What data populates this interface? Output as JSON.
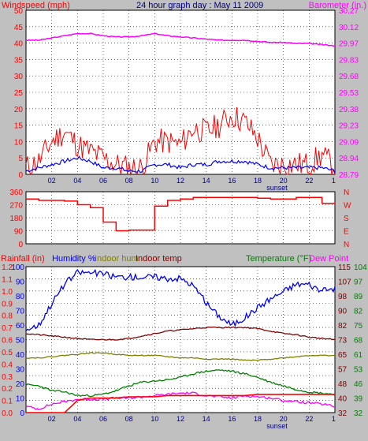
{
  "header": {
    "left_label": "Windspeed (mph)",
    "title": "24 hour graph day : May 11 2009",
    "right_label": "Barometer (in.)"
  },
  "legend_bottom": {
    "rainfall": "Rainfall (in)",
    "humidity": "Humidity %",
    "indoor_hum": "Indoor hum",
    "indoor_temp": "Indoor temp",
    "temperature": "Temperature (°F)",
    "dew_point": "Dew Point"
  },
  "colors": {
    "wind_speed": "#0000ff",
    "wind_gust": "#ff0000",
    "barometer": "#ff00ff",
    "direction": "#ff0000",
    "humidity": "#0000ff",
    "indoor_hum": "#808000",
    "indoor_temp": "#800000",
    "temperature": "#008000",
    "dew_point": "#ff00ff",
    "rainfall": "#ff0000",
    "red_axis": "#ff0000",
    "blue_axis": "#0000ff",
    "magenta_axis": "#ff00ff",
    "green_axis": "#008000"
  },
  "x_axis": {
    "ticks": [
      "02",
      "04",
      "06",
      "08",
      "10",
      "12",
      "14",
      "16",
      "18",
      "20",
      "22",
      "1"
    ],
    "marker": "sunset"
  },
  "chart_data": [
    {
      "type": "line",
      "title": "24 hour graph day : May 11 2009",
      "ylabel": "Windspeed (mph)",
      "y2label": "Barometer (in.)",
      "x": [
        0,
        1,
        2,
        3,
        4,
        5,
        6,
        7,
        8,
        9,
        10,
        11,
        12,
        13,
        14,
        15,
        16,
        17,
        18,
        19,
        20,
        21,
        22,
        23,
        24
      ],
      "ylim": [
        0,
        50
      ],
      "y2lim": [
        28.79,
        30.27
      ],
      "y_ticks": [
        "0",
        "5",
        "10",
        "15",
        "20",
        "25",
        "30",
        "35",
        "40",
        "45",
        "50"
      ],
      "y2_ticks": [
        "28.79",
        "28.94",
        "29.09",
        "29.23",
        "29.38",
        "29.53",
        "29.68",
        "29.83",
        "29.97",
        "30.12",
        "30.27"
      ],
      "series": [
        {
          "axis": "left",
          "values": [
            1,
            2,
            3,
            4,
            5,
            4,
            2,
            2,
            1,
            1,
            3,
            3,
            2,
            3,
            3,
            4,
            4,
            4,
            3,
            2,
            2,
            2,
            2,
            2,
            1
          ]
        },
        {
          "axis": "left",
          "values": [
            2,
            4,
            10,
            13,
            9,
            7,
            5,
            3,
            2,
            2,
            10,
            10,
            9,
            14,
            13,
            15,
            18,
            16,
            11,
            3,
            3,
            3,
            3,
            6,
            2
          ]
        },
        {
          "axis": "right",
          "values": [
            30.0,
            30.0,
            30.02,
            30.04,
            30.06,
            30.06,
            30.04,
            30.03,
            30.03,
            30.04,
            30.06,
            30.04,
            30.03,
            30.02,
            30.01,
            30.0,
            30.0,
            30.0,
            29.99,
            29.98,
            29.98,
            29.97,
            29.97,
            29.96,
            29.95
          ]
        }
      ]
    },
    {
      "type": "line",
      "x": [
        0,
        1,
        2,
        3,
        4,
        5,
        6,
        7,
        8,
        9,
        10,
        11,
        12,
        13,
        14,
        15,
        16,
        17,
        18,
        19,
        20,
        21,
        22,
        23,
        24
      ],
      "ylim": [
        0,
        360
      ],
      "y_ticks": [
        "0",
        "90",
        "180",
        "270",
        "360"
      ],
      "y2_ticks": [
        "N",
        "E",
        "S",
        "W",
        "N"
      ],
      "series": [
        {
          "values": [
            310,
            300,
            300,
            295,
            270,
            250,
            150,
            90,
            95,
            95,
            260,
            300,
            310,
            320,
            320,
            320,
            320,
            320,
            315,
            310,
            310,
            320,
            320,
            280,
            290
          ]
        }
      ]
    },
    {
      "type": "line",
      "ylabel": "Rainfall (in)",
      "y2label": "Temperature (°F)",
      "x": [
        0,
        1,
        2,
        3,
        4,
        5,
        6,
        7,
        8,
        9,
        10,
        11,
        12,
        13,
        14,
        15,
        16,
        17,
        18,
        19,
        20,
        21,
        22,
        23,
        24
      ],
      "ylim": [
        0,
        1.2
      ],
      "y_ticks_rain": [
        "0.0",
        "0.1",
        "0.2",
        "0.3",
        "0.4",
        "0.5",
        "0.6",
        "0.7",
        "0.8",
        "0.9",
        "1.0",
        "1.1",
        "1.2"
      ],
      "y_ticks_humidity": [
        "0",
        "10",
        "20",
        "30",
        "40",
        "50",
        "60",
        "70",
        "80",
        "90",
        "100"
      ],
      "y2_ticks_indoor": [
        "32",
        "40",
        "48",
        "57",
        "65",
        "73",
        "82",
        "90",
        "98",
        "107",
        "115"
      ],
      "y2_ticks_outdoor": [
        "32",
        "39",
        "46",
        "53",
        "61",
        "68",
        "75",
        "82",
        "89",
        "97",
        "104"
      ],
      "series": [
        {
          "values": [
            57,
            60,
            75,
            88,
            96,
            96,
            95,
            93,
            93,
            93,
            93,
            92,
            92,
            87,
            75,
            66,
            60,
            65,
            72,
            78,
            83,
            88,
            88,
            83,
            85
          ]
        },
        {
          "values": [
            0,
            0,
            0,
            0,
            0.1,
            0.12,
            0.12,
            0.12,
            0.13,
            0.13,
            0.13,
            0.14,
            0.14,
            0.14,
            0.14,
            0.14,
            0.14,
            0.14,
            0.15,
            0.15,
            0.15,
            0.15,
            0.15,
            0.15,
            0.15
          ]
        },
        {
          "values": [
            0.05,
            0.03,
            0.07,
            0.09,
            0.11,
            0.11,
            0.11,
            0.12,
            0.12,
            0.13,
            0.14,
            0.15,
            0.16,
            0.16,
            0.14,
            0.13,
            0.12,
            0.14,
            0.13,
            0.12,
            0.1,
            0.09,
            0.08,
            0.07,
            0.05
          ]
        },
        {
          "values": [
            0.23,
            0.22,
            0.18,
            0.17,
            0.14,
            0.14,
            0.15,
            0.18,
            0.22,
            0.25,
            0.26,
            0.27,
            0.29,
            0.32,
            0.34,
            0.35,
            0.34,
            0.32,
            0.29,
            0.25,
            0.22,
            0.19,
            0.17,
            0.16,
            0.15
          ]
        },
        {
          "values": [
            0.45,
            0.45,
            0.46,
            0.47,
            0.48,
            0.49,
            0.49,
            0.48,
            0.47,
            0.47,
            0.47,
            0.46,
            0.45,
            0.45,
            0.44,
            0.44,
            0.44,
            0.43,
            0.43,
            0.44,
            0.45,
            0.46,
            0.47,
            0.47,
            0.47
          ]
        },
        {
          "values": [
            0.65,
            0.64,
            0.63,
            0.62,
            0.61,
            0.6,
            0.6,
            0.6,
            0.61,
            0.63,
            0.65,
            0.67,
            0.68,
            0.69,
            0.7,
            0.7,
            0.7,
            0.7,
            0.69,
            0.67,
            0.65,
            0.64,
            0.62,
            0.61,
            0.6
          ]
        }
      ]
    }
  ]
}
